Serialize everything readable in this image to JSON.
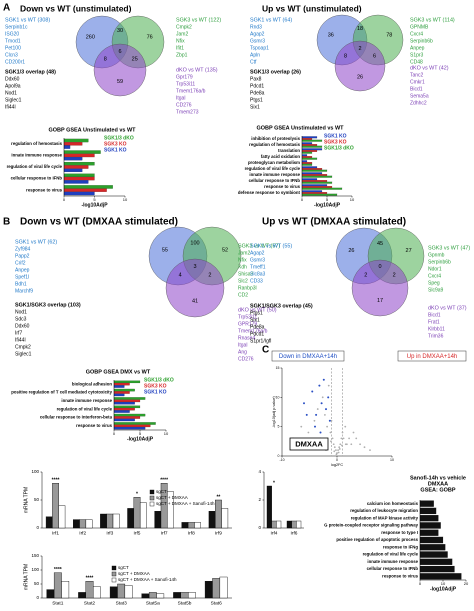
{
  "panel_labels": [
    "A",
    "B",
    "C"
  ],
  "venn_colors": [
    "#4a6fd8",
    "#4caf50",
    "#8e44c8"
  ],
  "list_colors": [
    "#1f78c8",
    "#000000",
    "#2e9e3e",
    "#7b3fb5"
  ],
  "venn_sections": [
    {
      "heading": "Down vs WT (unstimulated)",
      "counts": [
        260,
        30,
        76,
        6,
        8,
        25,
        59
      ],
      "lists": [
        {
          "title": "SGK1 vs WT (308)",
          "genes": [
            "Serpinb1c",
            "ISG20",
            "Tmod1",
            "Pet100",
            "Clcn3",
            "CD200r1"
          ]
        },
        {
          "title": "SGK1/3 overlap (48)",
          "genes": [
            "Ddx60",
            "Apol9a",
            "Nod1",
            "Siglec1",
            "Ifi44l"
          ]
        },
        {
          "title": "SGK3 vs WT (122)",
          "genes": [
            "Cmpk2",
            "Jam2",
            "Nfix",
            "Ifit1",
            "Zbp1"
          ]
        },
        {
          "title": "dKO vs WT (135)",
          "genes": [
            "Gpr179",
            "Trp53i11",
            "Tmem176a/b",
            "Itgal",
            "CD276",
            "Tmem273"
          ]
        }
      ]
    },
    {
      "heading": "Up vs WT (unstimulated)",
      "counts": [
        36,
        18,
        78,
        2,
        8,
        6,
        26
      ],
      "lists": [
        {
          "title": "SGK1 vs WT (64)",
          "genes": [
            "Rnd3",
            "Agap2",
            "Gsmr3",
            "Tspoap1",
            "Apln",
            "Ctf"
          ]
        },
        {
          "title": "SGK1/3 overlap (26)",
          "genes": [
            "Pax8",
            "Pdcd1",
            "Pde8a",
            "Ptgs1",
            "Six1"
          ]
        },
        {
          "title": "SGK3 vs WT (114)",
          "genes": [
            "GPNMB",
            "Cxcr4",
            "Serpinb6b",
            "Anpep",
            "S1pr3",
            "CD48"
          ]
        },
        {
          "title": "dKO vs WT (42)",
          "genes": [
            "Tanc2",
            "Cmkr1",
            "Bicd1",
            "Sema5a",
            "Zdhhc2"
          ]
        }
      ]
    },
    {
      "heading": "Down vs WT (DMXAA stimulated)",
      "counts": [
        55,
        100,
        52,
        3,
        4,
        2,
        41
      ],
      "lists": [
        {
          "title": "SGK1 vs WT (62)",
          "genes": [
            "Zyf984",
            "Papp2",
            "Crif2",
            "Anpep",
            "Spef1l",
            "Bdh1",
            "Marchf9"
          ]
        },
        {
          "title": "SGK1/SGK3 overlap (103)",
          "genes": [
            "Nod1",
            "Sdc3",
            "Ddx60",
            "Irf7",
            "Ifi44l",
            "Cmpk2",
            "Siglec1"
          ]
        },
        {
          "title": "SGK3 vs WT (57)",
          "genes": [
            "Jam2",
            "Nfix",
            "Xdh",
            "Shisa3",
            "Slc2",
            "Ranbp3l",
            "CD2"
          ]
        },
        {
          "title": "dKO vs WT (50)",
          "genes": [
            "Trp53i11",
            "GPR179",
            "Tmem176a/b",
            "Rnase4",
            "Itgal",
            "Ang",
            "CD276"
          ]
        }
      ]
    },
    {
      "heading": "Up vs WT (DMXAA stimulated)",
      "counts": [
        26,
        45,
        27,
        0,
        2,
        2,
        17
      ],
      "lists": [
        {
          "title": "SGK1 vs WT (55)",
          "genes": [
            "Agap2",
            "Gsmr3",
            "Tmeff1",
            "Slc8a3",
            "CD33"
          ]
        },
        {
          "title": "SGK1/SGK3 overlap (45)",
          "genes": [
            "Ptgs1",
            "Six1",
            "Pde8a",
            "Pdcd1",
            "S1pr1/Igfl"
          ]
        },
        {
          "title": "SGK3 vs WT (47)",
          "genes": [
            "Gpnmb",
            "Serpinb6b",
            "Ndor1",
            "Cxcr4",
            "Speg",
            "Slc9a9"
          ]
        },
        {
          "title": "dKO vs WT (37)",
          "genes": [
            "Bicd1",
            "Frat1",
            "Klrbb11",
            "Trim36"
          ]
        }
      ]
    }
  ],
  "chart_data": [
    {
      "type": "hbar",
      "title": "GOBP GSEA Unstimulated vs WT",
      "xlabel": "-log10AdjP",
      "categories": [
        "regulation of hemostasis",
        "innate immune response",
        "regulation of viral life cycle",
        "cellular response to IFNb",
        "response to virus"
      ],
      "series": [
        {
          "name": "SGK1/3 dKO",
          "color": "#2ca02c",
          "values": [
            4,
            6,
            5,
            5,
            8
          ]
        },
        {
          "name": "SGK3 KO",
          "color": "#d62728",
          "values": [
            3,
            5,
            4,
            5,
            7
          ]
        },
        {
          "name": "SGK1 KO",
          "color": "#1f3fbf",
          "values": [
            1,
            3,
            3,
            4,
            5
          ]
        }
      ],
      "xlim": [
        0,
        10
      ],
      "xticks": [
        0,
        5,
        10
      ]
    },
    {
      "type": "hbar",
      "title": "GOBP GSEA Unstimulated vs WT",
      "xlabel": "-log10AdjP",
      "categories": [
        "inhibition of proteolysis",
        "regulation of hemostasis",
        "translation",
        "fatty acid oxidation",
        "proteoglycan metabolism",
        "regulation of viral life cycle",
        "innate immune response",
        "cellular response to IFNb",
        "response to virus",
        "defense response to symbiont"
      ],
      "series": [
        {
          "name": "SGK1 KO",
          "color": "#1f3fbf",
          "values": [
            3,
            2,
            4,
            1,
            1,
            3,
            4,
            3,
            5,
            4
          ]
        },
        {
          "name": "SGK3 KO",
          "color": "#d62728",
          "values": [
            2,
            3,
            3,
            2,
            2,
            4,
            5,
            5,
            6,
            5
          ]
        },
        {
          "name": "SGK1/3 dKO",
          "color": "#2ca02c",
          "values": [
            4,
            4,
            2,
            3,
            2,
            5,
            6,
            6,
            8,
            7
          ]
        }
      ],
      "xlim": [
        0,
        10
      ],
      "xticks": [
        0,
        5,
        10
      ]
    },
    {
      "type": "hbar",
      "title": "GOBP GSEA DMX vs WT",
      "xlabel": "-log10AdjP",
      "categories": [
        "biological adhesion",
        "positive regulation of T cell mediated cytotoxicity",
        "innate immune response",
        "regulation of viral life cycle",
        "cellular response to interferon-beta",
        "response to virus"
      ],
      "series": [
        {
          "name": "SGK1/3 dKO",
          "color": "#2ca02c",
          "values": [
            5,
            4,
            6,
            5,
            6,
            8
          ]
        },
        {
          "name": "SGK3 KO",
          "color": "#d62728",
          "values": [
            3,
            3,
            5,
            4,
            5,
            7
          ]
        },
        {
          "name": "SGK1 KO",
          "color": "#1f3fbf",
          "values": [
            2,
            2,
            4,
            3,
            4,
            6
          ]
        }
      ],
      "xlim": [
        0,
        10
      ],
      "xticks": [
        0,
        5,
        10
      ]
    },
    {
      "type": "scatter",
      "down_label": "Down in DMXAA+14h",
      "up_label": "Up in DMXAA+14h",
      "condition": "DMXAA",
      "xlabel": "log2FC",
      "ylabel": "-log10(adj p value)",
      "x": [
        -8,
        -6.5,
        -5.2,
        -4.1,
        -3.5,
        -3,
        -2.6,
        -2.2,
        -1.8,
        -1.5,
        -1.2,
        -1,
        -0.8,
        -0.6,
        -0.4,
        -0.2,
        0,
        0.2,
        0.4,
        0.6,
        0.8,
        1,
        1.2,
        1.5,
        1.8,
        2.2,
        2.6,
        3,
        3.5,
        4.2,
        5,
        6,
        -0.5,
        0.3,
        -0.1,
        0.5,
        -1.1,
        0.9,
        -2,
        1.6
      ],
      "y": [
        3,
        5,
        4,
        6,
        8,
        3,
        10,
        7,
        5,
        12,
        4,
        6,
        3,
        2,
        1.5,
        1,
        0.5,
        1,
        1.5,
        2,
        3,
        4,
        3,
        5,
        2,
        3,
        2,
        4,
        3,
        2,
        1.5,
        1,
        0.8,
        0.6,
        0.3,
        1.2,
        2.5,
        1.8,
        1,
        2
      ],
      "highlight_x": [
        -6,
        -4.5,
        -3.8,
        -3.2,
        -2.8,
        -2.4,
        -2,
        -1.6,
        -1.3,
        -4,
        -5.5,
        -3
      ],
      "highlight_y": [
        9,
        11,
        7,
        12,
        9,
        13,
        8,
        10,
        6,
        5,
        7,
        4
      ],
      "color": "#b0b0b0",
      "highlight_color": "#2a4fc4",
      "xlim": [
        -10,
        10
      ],
      "ylim": [
        0,
        15
      ],
      "xticks": [
        -10,
        0,
        10
      ],
      "yticks": [
        0,
        5,
        10,
        15
      ]
    },
    {
      "type": "hbar",
      "title": [
        "Sanofi-14h vs vehicle",
        "DMXAA",
        "GSEA: GOBP"
      ],
      "xlabel": "-log10AdjP",
      "categories": [
        "calcium ion homeostasis",
        "regulation of leukocyte migration",
        "regulation of MAP kinase activity",
        "G protein-coupled receptor signaling pathway",
        "response to type I",
        "positive regulation of apoptotic process",
        "response to IFNg",
        "regulation of viral life cycle",
        "innate immune response",
        "cellular response to IFNb",
        "response to virus"
      ],
      "values": [
        6,
        7,
        8,
        9,
        8,
        10,
        11,
        12,
        14,
        15,
        18
      ],
      "color": "#111111",
      "xlim": [
        0,
        20
      ],
      "xticks": [
        0,
        10,
        20
      ]
    },
    {
      "type": "bar",
      "ylabel": "mRNA TPM",
      "legend": true,
      "categories": [
        "Irf1",
        "Irf2",
        "Irf3",
        "Irf5",
        "Irf7",
        "Irf8",
        "Irf9"
      ],
      "series": [
        {
          "name": "sgCT",
          "color": "#111111",
          "values": [
            20,
            15,
            25,
            35,
            30,
            10,
            30
          ]
        },
        {
          "name": "sgCT + DMXAA",
          "color": "#999999",
          "values": [
            80,
            15,
            25,
            55,
            80,
            10,
            50
          ]
        },
        {
          "name": "sgCT + DMXAA + Sanofi-14h",
          "color": "#ffffff",
          "values": [
            40,
            15,
            25,
            45,
            65,
            10,
            35
          ]
        }
      ],
      "significance": [
        "****",
        null,
        null,
        "*",
        "****",
        null,
        "**"
      ],
      "ylim": [
        0,
        100
      ],
      "yticks": [
        0,
        50,
        100
      ]
    },
    {
      "type": "bar",
      "legend": false,
      "categories": [
        "Irf4",
        "Irf6"
      ],
      "series": [
        {
          "color": "#111111",
          "values": [
            3,
            0.5
          ]
        },
        {
          "color": "#999999",
          "values": [
            0.5,
            0.5
          ]
        },
        {
          "color": "#ffffff",
          "values": [
            0.5,
            0.5
          ]
        }
      ],
      "significance": [
        "*",
        null
      ],
      "ylim": [
        0,
        4
      ],
      "yticks": [
        0,
        2,
        4
      ]
    },
    {
      "type": "bar",
      "ylabel": "mRNA TPM",
      "legend": true,
      "categories": [
        "Stat1",
        "Stat2",
        "Stat3",
        "Stat5a",
        "Stat5b",
        "Stat6"
      ],
      "series": [
        {
          "name": "sgCT",
          "color": "#111111",
          "values": [
            30,
            20,
            40,
            15,
            20,
            60
          ]
        },
        {
          "name": "sgCT + DMXAA",
          "color": "#999999",
          "values": [
            90,
            60,
            50,
            20,
            20,
            70
          ]
        },
        {
          "name": "sgCT + DMXAA + Sanofi-14h",
          "color": "#ffffff",
          "values": [
            60,
            40,
            45,
            15,
            20,
            75
          ]
        }
      ],
      "significance": [
        "****",
        "****",
        null,
        null,
        null,
        null
      ],
      "ylim": [
        0,
        150
      ],
      "yticks": [
        0,
        50,
        100,
        150
      ]
    }
  ]
}
